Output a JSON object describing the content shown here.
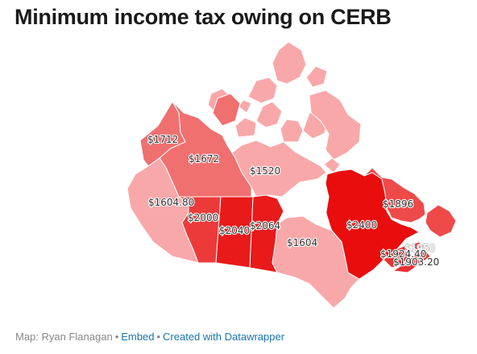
{
  "title": "Minimum income tax owing on CERB",
  "footer": {
    "credit": "Map: Ryan Flanagan",
    "embed": "Embed",
    "created": "Created with Datawrapper"
  },
  "colors": {
    "lightest": "#f9a8aa",
    "light": "#f48486",
    "medium": "#f07070",
    "strong": "#ec3a3a",
    "strongest": "#e90d0d",
    "water": "#ffffff",
    "border": "#ffffff"
  },
  "regions": [
    {
      "name": "Yukon",
      "label": "$1712",
      "value": 1712
    },
    {
      "name": "Northwest Territories",
      "label": "$1672",
      "value": 1672
    },
    {
      "name": "Nunavut",
      "label": "$1520",
      "value": 1520
    },
    {
      "name": "British Columbia",
      "label": "$1604.80",
      "value": 1604.8
    },
    {
      "name": "Alberta",
      "label": "$2000",
      "value": 2000
    },
    {
      "name": "Saskatchewan",
      "label": "$2040",
      "value": 2040
    },
    {
      "name": "Manitoba",
      "label": "$2064",
      "value": 2064
    },
    {
      "name": "Ontario",
      "label": "$1604",
      "value": 1604
    },
    {
      "name": "Quebec",
      "label": "$2400",
      "value": 2400
    },
    {
      "name": "Newfoundland and Labrador",
      "label": "$1896",
      "value": 1896
    },
    {
      "name": "New Brunswick",
      "label": "$1924.40",
      "value": 1924.4
    },
    {
      "name": "Nova Scotia",
      "label": "$1903.20",
      "value": 1903.2
    },
    {
      "name": "Prince Edward Island",
      "label": "$1950",
      "value": 1950
    }
  ]
}
